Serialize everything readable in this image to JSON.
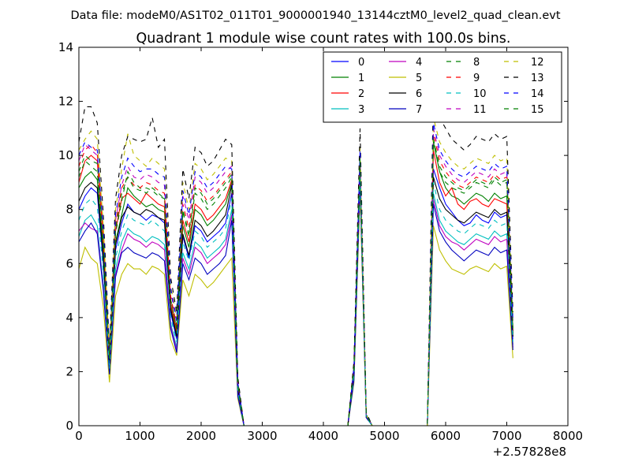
{
  "suptitle": "Data file: modeM0/AS1T02_011T01_9000001940_13144cztM0_level2_quad_clean.evt",
  "chart_data": {
    "type": "line",
    "title": "Quadrant 1 module wise count rates with 100.0s bins.",
    "xlabel": "",
    "ylabel": "",
    "x_offset_label": "+2.57828e8",
    "xlim": [
      0,
      8000
    ],
    "ylim": [
      0,
      14
    ],
    "xticks": [
      0,
      1000,
      2000,
      3000,
      4000,
      5000,
      6000,
      7000,
      8000
    ],
    "yticks": [
      0,
      2,
      4,
      6,
      8,
      10,
      12,
      14
    ],
    "grid": false,
    "legend_position": "top-right",
    "legend_columns": 4,
    "x": [
      0,
      100,
      200,
      300,
      400,
      500,
      600,
      700,
      800,
      900,
      1000,
      1100,
      1200,
      1300,
      1400,
      1500,
      1600,
      1700,
      1800,
      1900,
      2000,
      2100,
      2200,
      2300,
      2400,
      2500,
      2600,
      2700,
      2800,
      2900,
      3000,
      3100,
      3200,
      3300,
      3400,
      3500,
      3600,
      3700,
      3800,
      3900,
      4000,
      4100,
      4200,
      4300,
      4400,
      4500,
      4600,
      4700,
      4800,
      4900,
      5000,
      5100,
      5200,
      5300,
      5400,
      5500,
      5600,
      5700,
      5800,
      5900,
      6000,
      6100,
      6200,
      6300,
      6400,
      6500,
      6600,
      6700,
      6800,
      6900,
      7000,
      7100
    ],
    "series": [
      {
        "name": "0",
        "color": "#0000ff",
        "dash": false,
        "values": [
          8.0,
          8.5,
          8.8,
          8.6,
          6.0,
          2.2,
          6.5,
          7.5,
          8.2,
          7.9,
          7.8,
          7.6,
          7.8,
          7.7,
          7.5,
          4.2,
          3.2,
          7.0,
          6.2,
          7.4,
          7.2,
          6.8,
          7.0,
          7.2,
          7.5,
          8.6,
          1.4,
          0,
          0,
          0,
          0,
          0,
          0,
          0,
          0,
          0,
          0,
          0,
          0,
          0,
          0,
          0,
          0,
          0,
          0,
          2.0,
          9.5,
          0.4,
          0,
          0,
          0,
          0,
          0,
          0,
          0,
          0,
          0,
          0,
          9.5,
          8.8,
          8.2,
          7.9,
          7.6,
          7.4,
          7.5,
          7.8,
          7.6,
          7.5,
          7.9,
          7.7,
          7.8,
          3.2
        ]
      },
      {
        "name": "1",
        "color": "#008000",
        "dash": false,
        "values": [
          8.8,
          9.2,
          9.4,
          9.1,
          6.4,
          2.4,
          6.8,
          7.8,
          8.8,
          8.5,
          8.3,
          8.1,
          8.2,
          8.0,
          7.9,
          4.4,
          3.4,
          7.4,
          6.6,
          8.0,
          7.8,
          7.4,
          7.6,
          7.9,
          8.2,
          9.0,
          1.5,
          0,
          0,
          0,
          0,
          0,
          0,
          0,
          0,
          0,
          0,
          0,
          0,
          0,
          0,
          0,
          0,
          0,
          0,
          2.0,
          9.6,
          0.4,
          0,
          0,
          0,
          0,
          0,
          0,
          0,
          0,
          0,
          0,
          10.5,
          9.4,
          8.8,
          8.5,
          8.4,
          8.2,
          8.4,
          8.6,
          8.5,
          8.3,
          8.6,
          8.4,
          8.5,
          3.4
        ]
      },
      {
        "name": "2",
        "color": "#ff0000",
        "dash": false,
        "values": [
          9.0,
          9.8,
          10.0,
          9.8,
          6.8,
          2.5,
          7.2,
          8.4,
          8.6,
          8.4,
          8.2,
          8.6,
          8.4,
          8.2,
          8.1,
          4.5,
          3.5,
          7.6,
          6.8,
          8.2,
          8.0,
          7.6,
          7.8,
          8.1,
          8.4,
          9.1,
          1.5,
          0,
          0,
          0,
          0,
          0,
          0,
          0,
          0,
          0,
          0,
          0,
          0,
          0,
          0,
          0,
          0,
          0,
          0,
          2.1,
          9.8,
          0.4,
          0,
          0,
          0,
          0,
          0,
          0,
          0,
          0,
          0,
          0,
          10.2,
          9.0,
          8.5,
          8.8,
          8.2,
          8.0,
          8.3,
          8.4,
          8.2,
          8.1,
          8.4,
          8.3,
          8.2,
          3.5
        ]
      },
      {
        "name": "3",
        "color": "#00bfbf",
        "dash": false,
        "values": [
          7.0,
          7.6,
          7.8,
          7.4,
          5.2,
          2.0,
          5.8,
          6.8,
          7.3,
          7.1,
          7.0,
          6.8,
          7.0,
          6.9,
          6.7,
          3.8,
          2.9,
          6.4,
          5.8,
          6.8,
          6.6,
          6.2,
          6.4,
          6.6,
          6.9,
          8.0,
          1.2,
          0,
          0,
          0,
          0,
          0,
          0,
          0,
          0,
          0,
          0,
          0,
          0,
          0,
          0,
          0,
          0,
          0,
          0,
          1.8,
          9.2,
          0.3,
          0,
          0,
          0,
          0,
          0,
          0,
          0,
          0,
          0,
          0,
          8.6,
          7.6,
          7.2,
          7.0,
          6.8,
          6.7,
          6.9,
          7.1,
          7.0,
          6.9,
          7.2,
          7.0,
          7.1,
          3.0
        ]
      },
      {
        "name": "4",
        "color": "#bf00bf",
        "dash": false,
        "values": [
          7.2,
          7.5,
          7.3,
          7.2,
          5.1,
          1.9,
          5.6,
          6.5,
          7.1,
          6.9,
          6.8,
          6.6,
          6.8,
          6.7,
          6.5,
          3.7,
          2.8,
          6.2,
          5.6,
          6.6,
          6.4,
          6.0,
          6.2,
          6.4,
          6.7,
          7.8,
          1.2,
          0,
          0,
          0,
          0,
          0,
          0,
          0,
          0,
          0,
          0,
          0,
          0,
          0,
          0,
          0,
          0,
          0,
          0,
          1.8,
          9.0,
          0.3,
          0,
          0,
          0,
          0,
          0,
          0,
          0,
          0,
          0,
          0,
          8.4,
          7.4,
          7.0,
          6.8,
          6.7,
          6.5,
          6.7,
          6.9,
          6.8,
          6.7,
          7.0,
          6.8,
          6.9,
          2.9
        ]
      },
      {
        "name": "5",
        "color": "#bfbf00",
        "dash": false,
        "values": [
          5.8,
          6.6,
          6.2,
          6.0,
          4.4,
          1.6,
          4.8,
          5.6,
          6.0,
          5.8,
          5.8,
          5.6,
          5.9,
          5.8,
          5.6,
          3.2,
          2.6,
          5.4,
          4.8,
          5.6,
          5.4,
          5.1,
          5.3,
          5.6,
          5.9,
          6.2,
          1.0,
          0,
          0,
          0,
          0,
          0,
          0,
          0,
          0,
          0,
          0,
          0,
          0,
          0,
          0,
          0,
          0,
          0,
          0,
          1.6,
          8.6,
          0.3,
          0,
          0,
          0,
          0,
          0,
          0,
          0,
          0,
          0,
          0,
          7.4,
          6.5,
          6.1,
          5.8,
          5.7,
          5.6,
          5.8,
          5.9,
          5.8,
          5.7,
          6.0,
          5.8,
          5.9,
          2.5
        ]
      },
      {
        "name": "6",
        "color": "#000000",
        "dash": false,
        "values": [
          8.3,
          8.8,
          9.0,
          8.8,
          6.2,
          2.3,
          6.7,
          7.7,
          8.1,
          7.9,
          7.8,
          8.0,
          7.9,
          7.7,
          7.6,
          4.3,
          3.3,
          7.1,
          6.3,
          7.6,
          7.4,
          7.0,
          7.2,
          7.5,
          7.8,
          8.9,
          1.4,
          0,
          0,
          0,
          0,
          0,
          0,
          0,
          0,
          0,
          0,
          0,
          0,
          0,
          0,
          0,
          0,
          0,
          0,
          2.0,
          9.6,
          0.4,
          0,
          0,
          0,
          0,
          0,
          0,
          0,
          0,
          0,
          0,
          9.2,
          8.4,
          8.0,
          7.8,
          7.6,
          7.5,
          7.7,
          7.9,
          7.8,
          7.7,
          8.0,
          7.8,
          7.9,
          3.3
        ]
      },
      {
        "name": "7",
        "color": "#0000bf",
        "dash": false,
        "values": [
          6.8,
          7.2,
          7.5,
          7.1,
          5.0,
          1.9,
          5.5,
          6.4,
          6.6,
          6.4,
          6.3,
          6.2,
          6.4,
          6.3,
          6.1,
          3.6,
          2.7,
          6.0,
          5.4,
          6.2,
          6.0,
          5.6,
          5.8,
          6.0,
          6.3,
          7.6,
          1.1,
          0,
          0,
          0,
          0,
          0,
          0,
          0,
          0,
          0,
          0,
          0,
          0,
          0,
          0,
          0,
          0,
          0,
          0,
          1.7,
          9.0,
          0.3,
          0,
          0,
          0,
          0,
          0,
          0,
          0,
          0,
          0,
          0,
          8.2,
          7.2,
          6.8,
          6.5,
          6.3,
          6.1,
          6.3,
          6.5,
          6.4,
          6.3,
          6.6,
          6.4,
          6.5,
          2.8
        ]
      },
      {
        "name": "8",
        "color": "#008000",
        "dash": true,
        "values": [
          9.2,
          9.8,
          9.6,
          9.4,
          6.6,
          2.5,
          7.1,
          8.3,
          9.4,
          9.0,
          8.8,
          8.6,
          8.8,
          8.6,
          8.4,
          4.7,
          3.6,
          7.9,
          7.0,
          8.6,
          8.4,
          8.0,
          8.2,
          8.5,
          8.8,
          9.2,
          1.5,
          0,
          0,
          0,
          0,
          0,
          0,
          0,
          0,
          0,
          0,
          0,
          0,
          0,
          0,
          0,
          0,
          0,
          0,
          2.1,
          9.8,
          0.4,
          0,
          0,
          0,
          0,
          0,
          0,
          0,
          0,
          0,
          0,
          10.6,
          9.4,
          9.0,
          8.8,
          8.7,
          8.6,
          8.8,
          9.0,
          8.9,
          8.8,
          9.1,
          8.9,
          9.0,
          3.6
        ]
      },
      {
        "name": "9",
        "color": "#ff0000",
        "dash": true,
        "values": [
          9.6,
          10.2,
          10.4,
          10.1,
          7.0,
          2.6,
          7.5,
          8.8,
          9.2,
          8.9,
          8.8,
          9.0,
          8.9,
          8.7,
          8.6,
          4.8,
          3.7,
          8.2,
          7.3,
          8.9,
          8.7,
          8.3,
          8.5,
          8.8,
          9.1,
          9.4,
          1.6,
          0,
          0,
          0,
          0,
          0,
          0,
          0,
          0,
          0,
          0,
          0,
          0,
          0,
          0,
          0,
          0,
          0,
          0,
          2.2,
          10.0,
          0.4,
          0,
          0,
          0,
          0,
          0,
          0,
          0,
          0,
          0,
          0,
          10.8,
          9.8,
          9.4,
          9.1,
          8.9,
          8.8,
          9.0,
          9.2,
          9.1,
          9.0,
          9.3,
          9.1,
          9.2,
          3.7
        ]
      },
      {
        "name": "10",
        "color": "#00bfbf",
        "dash": true,
        "values": [
          7.6,
          8.2,
          8.4,
          8.1,
          5.7,
          2.1,
          6.2,
          7.2,
          7.8,
          7.6,
          7.5,
          7.4,
          7.6,
          7.4,
          7.2,
          4.0,
          3.1,
          6.8,
          6.1,
          7.2,
          7.0,
          6.6,
          6.8,
          7.0,
          7.3,
          8.4,
          1.3,
          0,
          0,
          0,
          0,
          0,
          0,
          0,
          0,
          0,
          0,
          0,
          0,
          0,
          0,
          0,
          0,
          0,
          0,
          1.9,
          9.3,
          0.3,
          0,
          0,
          0,
          0,
          0,
          0,
          0,
          0,
          0,
          0,
          9.0,
          8.0,
          7.6,
          7.4,
          7.2,
          7.1,
          7.3,
          7.5,
          7.4,
          7.3,
          7.6,
          7.4,
          7.5,
          3.1
        ]
      },
      {
        "name": "11",
        "color": "#bf00bf",
        "dash": true,
        "values": [
          9.8,
          10.4,
          10.2,
          10.0,
          7.0,
          2.6,
          7.6,
          8.9,
          9.6,
          9.2,
          9.1,
          9.3,
          9.2,
          9.0,
          8.9,
          5.0,
          3.8,
          8.5,
          7.6,
          9.2,
          9.0,
          8.6,
          8.8,
          9.1,
          9.4,
          9.6,
          1.6,
          0,
          0,
          0,
          0,
          0,
          0,
          0,
          0,
          0,
          0,
          0,
          0,
          0,
          0,
          0,
          0,
          0,
          0,
          2.2,
          10.1,
          0.4,
          0,
          0,
          0,
          0,
          0,
          0,
          0,
          0,
          0,
          0,
          11.0,
          10.0,
          9.6,
          9.3,
          9.1,
          9.0,
          9.2,
          9.4,
          9.3,
          9.2,
          9.5,
          9.3,
          9.4,
          3.8
        ]
      },
      {
        "name": "12",
        "color": "#bfbf00",
        "dash": true,
        "values": [
          10.2,
          10.6,
          10.9,
          10.6,
          7.4,
          2.7,
          8.0,
          9.5,
          10.8,
          10.0,
          9.8,
          9.6,
          9.9,
          9.7,
          9.5,
          5.2,
          4.0,
          9.0,
          8.0,
          9.7,
          9.5,
          9.1,
          9.3,
          9.6,
          9.9,
          9.8,
          1.7,
          0,
          0,
          0,
          0,
          0,
          0,
          0,
          0,
          0,
          0,
          0,
          0,
          0,
          0,
          0,
          0,
          0,
          0,
          2.3,
          10.3,
          0.4,
          0,
          0,
          0,
          0,
          0,
          0,
          0,
          0,
          0,
          0,
          11.4,
          10.5,
          10.1,
          9.8,
          9.6,
          9.5,
          9.7,
          9.9,
          9.8,
          9.7,
          10.0,
          9.8,
          9.9,
          4.0
        ]
      },
      {
        "name": "13",
        "color": "#000000",
        "dash": true,
        "values": [
          10.5,
          11.8,
          11.8,
          11.2,
          7.8,
          2.9,
          8.4,
          10.0,
          10.7,
          10.6,
          10.5,
          10.6,
          11.4,
          10.3,
          10.6,
          5.5,
          4.2,
          9.5,
          8.4,
          10.3,
          10.1,
          9.6,
          9.8,
          10.2,
          10.6,
          10.4,
          1.8,
          0,
          0,
          0,
          0,
          0,
          0,
          0,
          0,
          0,
          0,
          0,
          0,
          0,
          0,
          0,
          0,
          0,
          0,
          2.4,
          11.0,
          0.5,
          0,
          0,
          0,
          0,
          0,
          0,
          0,
          0,
          0,
          0,
          12.4,
          11.4,
          11.0,
          10.6,
          10.4,
          10.2,
          10.4,
          10.7,
          10.6,
          10.5,
          10.8,
          10.6,
          10.7,
          4.2
        ]
      },
      {
        "name": "14",
        "color": "#0000ff",
        "dash": true,
        "values": [
          10.0,
          10.5,
          10.3,
          10.2,
          7.2,
          2.7,
          7.8,
          9.2,
          9.9,
          9.6,
          9.4,
          9.5,
          9.5,
          9.3,
          9.2,
          5.1,
          3.9,
          8.7,
          7.8,
          9.4,
          9.2,
          8.8,
          9.0,
          9.3,
          9.6,
          9.5,
          1.6,
          0,
          0,
          0,
          0,
          0,
          0,
          0,
          0,
          0,
          0,
          0,
          0,
          0,
          0,
          0,
          0,
          0,
          0,
          2.2,
          10.2,
          0.4,
          0,
          0,
          0,
          0,
          0,
          0,
          0,
          0,
          0,
          0,
          11.2,
          10.2,
          9.8,
          9.5,
          9.3,
          9.2,
          9.4,
          9.6,
          9.5,
          9.4,
          9.7,
          9.5,
          9.6,
          3.9
        ]
      },
      {
        "name": "15",
        "color": "#008000",
        "dash": true,
        "values": [
          9.4,
          10.0,
          9.8,
          9.7,
          6.8,
          2.5,
          7.3,
          8.6,
          9.2,
          8.8,
          8.7,
          8.8,
          8.7,
          8.5,
          8.4,
          4.7,
          3.6,
          8.0,
          7.1,
          8.8,
          8.6,
          8.2,
          8.4,
          8.7,
          9.0,
          9.3,
          1.5,
          0,
          0,
          0,
          0,
          0,
          0,
          0,
          0,
          0,
          0,
          0,
          0,
          0,
          0,
          0,
          0,
          0,
          0,
          2.1,
          9.9,
          0.4,
          0,
          0,
          0,
          0,
          0,
          0,
          0,
          0,
          0,
          0,
          10.6,
          9.6,
          9.2,
          9.0,
          8.8,
          8.7,
          8.9,
          9.1,
          9.0,
          8.9,
          9.2,
          9.0,
          9.1,
          3.6
        ]
      }
    ]
  }
}
